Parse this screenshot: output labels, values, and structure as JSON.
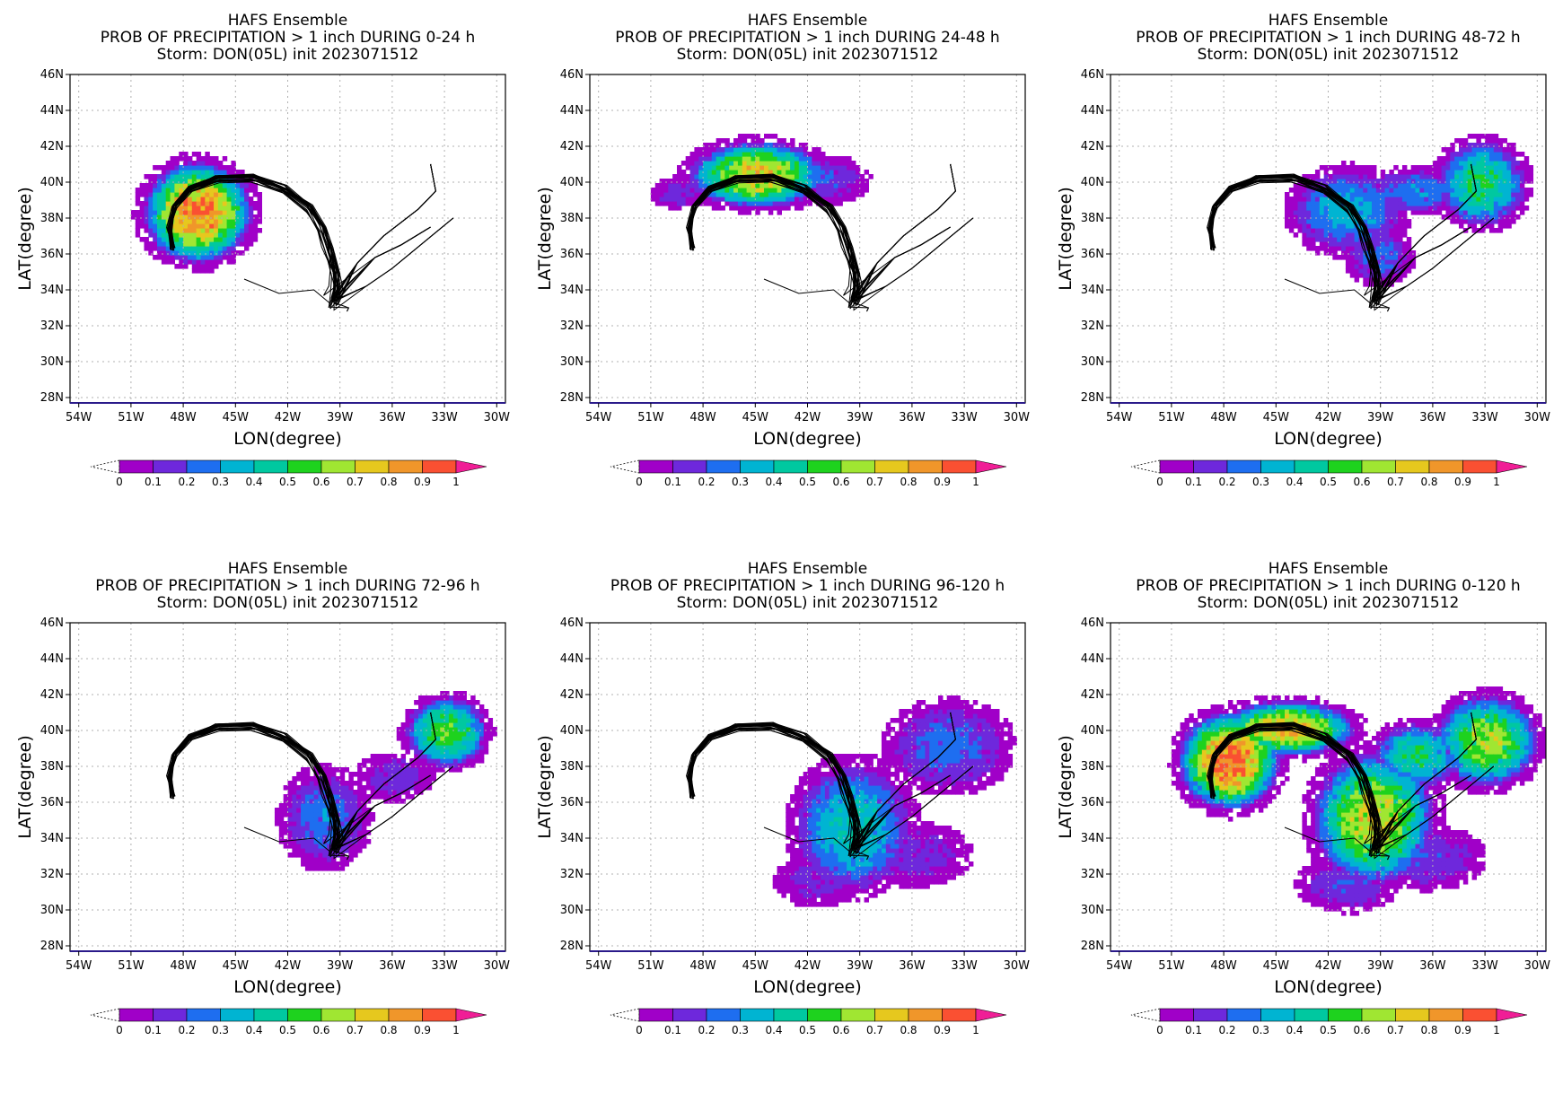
{
  "colorbar": {
    "colors": [
      "#a000c8",
      "#6e28dc",
      "#1e6ef0",
      "#00b4d2",
      "#00c8a0",
      "#1ed21e",
      "#a0e632",
      "#e6c81e",
      "#f0962a",
      "#fa5032"
    ],
    "under_color": "#ffffff",
    "over_color": "#f01e96",
    "labels": [
      "0",
      "0.1",
      "0.2",
      "0.3",
      "0.4",
      "0.5",
      "0.6",
      "0.7",
      "0.8",
      "0.9",
      "1"
    ]
  },
  "track_color": "#000000",
  "chart_data": [
    {
      "type": "heatmap",
      "title_lines": [
        "HAFS Ensemble",
        "PROB OF PRECIPITATION > 1 inch DURING  0-24 h",
        "Storm: DON(05L) init 2023071512"
      ],
      "xlabel": "LON(degree)",
      "ylabel": "LAT(degree)",
      "xlim": [
        -54.5,
        -29.5
      ],
      "ylim": [
        27.7,
        46
      ],
      "xticks": [
        -54,
        -51,
        -48,
        -45,
        -42,
        -39,
        -36,
        -33,
        -30
      ],
      "xtick_labels": [
        "54W",
        "51W",
        "48W",
        "45W",
        "42W",
        "39W",
        "36W",
        "33W",
        "30W"
      ],
      "yticks": [
        28,
        30,
        32,
        34,
        36,
        38,
        40,
        42,
        44,
        46
      ],
      "ytick_labels": [
        "28N",
        "30N",
        "32N",
        "34N",
        "36N",
        "38N",
        "40N",
        "42N",
        "44N",
        "46N"
      ],
      "grid": true,
      "blobs": [
        {
          "lon": -47.3,
          "lat": 38.2,
          "rlon": 3.2,
          "rlat": 2.9,
          "peak": 0.85
        },
        {
          "lon": -46.0,
          "lat": 39.6,
          "rlon": 1.8,
          "rlat": 1.0,
          "peak": 0.18
        }
      ]
    },
    {
      "type": "heatmap",
      "title_lines": [
        "HAFS Ensemble",
        "PROB OF PRECIPITATION > 1 inch DURING 24-48 h",
        "Storm: DON(05L) init 2023071512"
      ],
      "xlabel": "LON(degree)",
      "ylabel": "LAT(degree)",
      "xlim": [
        -54.5,
        -29.5
      ],
      "ylim": [
        27.7,
        46
      ],
      "xticks": [
        -54,
        -51,
        -48,
        -45,
        -42,
        -39,
        -36,
        -33,
        -30
      ],
      "xtick_labels": [
        "54W",
        "51W",
        "48W",
        "45W",
        "42W",
        "39W",
        "36W",
        "33W",
        "30W"
      ],
      "yticks": [
        28,
        30,
        32,
        34,
        36,
        38,
        40,
        42,
        44,
        46
      ],
      "ytick_labels": [
        "28N",
        "30N",
        "32N",
        "34N",
        "36N",
        "38N",
        "40N",
        "42N",
        "44N",
        "46N"
      ],
      "grid": true,
      "blobs": [
        {
          "lon": -45.0,
          "lat": 40.3,
          "rlon": 4.0,
          "rlat": 1.9,
          "peak": 0.72
        },
        {
          "lon": -41.0,
          "lat": 40.0,
          "rlon": 2.2,
          "rlat": 1.2,
          "peak": 0.16
        },
        {
          "lon": -49.5,
          "lat": 39.3,
          "rlon": 1.5,
          "rlat": 0.8,
          "peak": 0.12
        }
      ]
    },
    {
      "type": "heatmap",
      "title_lines": [
        "HAFS Ensemble",
        "PROB OF PRECIPITATION > 1 inch DURING 48-72 h",
        "Storm: DON(05L) init 2023071512"
      ],
      "xlabel": "LON(degree)",
      "ylabel": "LAT(degree)",
      "xlim": [
        -54.5,
        -29.5
      ],
      "ylim": [
        27.7,
        46
      ],
      "xticks": [
        -54,
        -51,
        -48,
        -45,
        -42,
        -39,
        -36,
        -33,
        -30
      ],
      "xtick_labels": [
        "54W",
        "51W",
        "48W",
        "45W",
        "42W",
        "39W",
        "36W",
        "33W",
        "30W"
      ],
      "yticks": [
        28,
        30,
        32,
        34,
        36,
        38,
        40,
        42,
        44,
        46
      ],
      "ytick_labels": [
        "28N",
        "30N",
        "32N",
        "34N",
        "36N",
        "38N",
        "40N",
        "42N",
        "44N",
        "46N"
      ],
      "grid": true,
      "blobs": [
        {
          "lon": -41.0,
          "lat": 38.3,
          "rlon": 3.2,
          "rlat": 2.3,
          "peak": 0.32
        },
        {
          "lon": -33.3,
          "lat": 39.8,
          "rlon": 2.6,
          "rlat": 2.4,
          "peak": 0.48
        },
        {
          "lon": -37.0,
          "lat": 39.4,
          "rlon": 3.0,
          "rlat": 1.2,
          "peak": 0.24
        },
        {
          "lon": -39.2,
          "lat": 35.8,
          "rlon": 1.8,
          "rlat": 1.5,
          "peak": 0.2
        }
      ]
    },
    {
      "type": "heatmap",
      "title_lines": [
        "HAFS Ensemble",
        "PROB OF PRECIPITATION > 1 inch DURING 72-96 h",
        "Storm: DON(05L) init 2023071512"
      ],
      "xlabel": "LON(degree)",
      "ylabel": "LAT(degree)",
      "xlim": [
        -54.5,
        -29.5
      ],
      "ylim": [
        27.7,
        46
      ],
      "xticks": [
        -54,
        -51,
        -48,
        -45,
        -42,
        -39,
        -36,
        -33,
        -30
      ],
      "xtick_labels": [
        "54W",
        "51W",
        "48W",
        "45W",
        "42W",
        "39W",
        "36W",
        "33W",
        "30W"
      ],
      "yticks": [
        28,
        30,
        32,
        34,
        36,
        38,
        40,
        42,
        44,
        46
      ],
      "ytick_labels": [
        "28N",
        "30N",
        "32N",
        "34N",
        "36N",
        "38N",
        "40N",
        "42N",
        "44N",
        "46N"
      ],
      "grid": true,
      "blobs": [
        {
          "lon": -33.0,
          "lat": 39.8,
          "rlon": 2.4,
          "rlat": 2.0,
          "peak": 0.55
        },
        {
          "lon": -40.0,
          "lat": 35.0,
          "rlon": 2.4,
          "rlat": 2.6,
          "peak": 0.22
        },
        {
          "lon": -36.0,
          "lat": 37.3,
          "rlon": 2.0,
          "rlat": 1.2,
          "peak": 0.12
        }
      ]
    },
    {
      "type": "heatmap",
      "title_lines": [
        "HAFS Ensemble",
        "PROB OF PRECIPITATION > 1 inch DURING 96-120 h",
        "Storm: DON(05L) init 2023071512"
      ],
      "xlabel": "LON(degree)",
      "ylabel": "LAT(degree)",
      "xlim": [
        -54.5,
        -29.5
      ],
      "ylim": [
        27.7,
        46
      ],
      "xticks": [
        -54,
        -51,
        -48,
        -45,
        -42,
        -39,
        -36,
        -33,
        -30
      ],
      "xtick_labels": [
        "54W",
        "51W",
        "48W",
        "45W",
        "42W",
        "39W",
        "36W",
        "33W",
        "30W"
      ],
      "yticks": [
        28,
        30,
        32,
        34,
        36,
        38,
        40,
        42,
        44,
        46
      ],
      "ytick_labels": [
        "28N",
        "30N",
        "32N",
        "34N",
        "36N",
        "38N",
        "40N",
        "42N",
        "44N",
        "46N"
      ],
      "grid": true,
      "blobs": [
        {
          "lon": -39.5,
          "lat": 34.5,
          "rlon": 3.4,
          "rlat": 3.6,
          "peak": 0.38
        },
        {
          "lon": -34.0,
          "lat": 39.0,
          "rlon": 3.4,
          "rlat": 2.4,
          "peak": 0.2
        },
        {
          "lon": -36.0,
          "lat": 33.0,
          "rlon": 3.0,
          "rlat": 1.6,
          "peak": 0.1
        },
        {
          "lon": -41.5,
          "lat": 31.5,
          "rlon": 2.2,
          "rlat": 1.3,
          "peak": 0.1
        }
      ]
    },
    {
      "type": "heatmap",
      "title_lines": [
        "HAFS Ensemble",
        "PROB OF PRECIPITATION > 1 inch DURING 0-120 h",
        "Storm: DON(05L) init 2023071512"
      ],
      "xlabel": "LON(degree)",
      "ylabel": "LAT(degree)",
      "xlim": [
        -54.5,
        -29.5
      ],
      "ylim": [
        27.7,
        46
      ],
      "xticks": [
        -54,
        -51,
        -48,
        -45,
        -42,
        -39,
        -36,
        -33,
        -30
      ],
      "xtick_labels": [
        "54W",
        "51W",
        "48W",
        "45W",
        "42W",
        "39W",
        "36W",
        "33W",
        "30W"
      ],
      "yticks": [
        28,
        30,
        32,
        34,
        36,
        38,
        40,
        42,
        44,
        46
      ],
      "ytick_labels": [
        "28N",
        "30N",
        "32N",
        "34N",
        "36N",
        "38N",
        "40N",
        "42N",
        "44N",
        "46N"
      ],
      "grid": true,
      "blobs": [
        {
          "lon": -47.8,
          "lat": 38.2,
          "rlon": 3.0,
          "rlat": 2.8,
          "peak": 0.9
        },
        {
          "lon": -44.5,
          "lat": 40.0,
          "rlon": 4.0,
          "rlat": 1.6,
          "peak": 0.75
        },
        {
          "lon": -39.5,
          "lat": 35.0,
          "rlon": 3.6,
          "rlat": 3.8,
          "peak": 0.68
        },
        {
          "lon": -33.0,
          "lat": 39.3,
          "rlon": 3.0,
          "rlat": 2.6,
          "peak": 0.62
        },
        {
          "lon": -37.0,
          "lat": 38.5,
          "rlon": 2.6,
          "rlat": 1.8,
          "peak": 0.45
        },
        {
          "lon": -36.5,
          "lat": 32.8,
          "rlon": 3.0,
          "rlat": 1.6,
          "peak": 0.15
        },
        {
          "lon": -41.0,
          "lat": 31.3,
          "rlon": 2.6,
          "rlat": 1.4,
          "peak": 0.15
        }
      ]
    }
  ]
}
